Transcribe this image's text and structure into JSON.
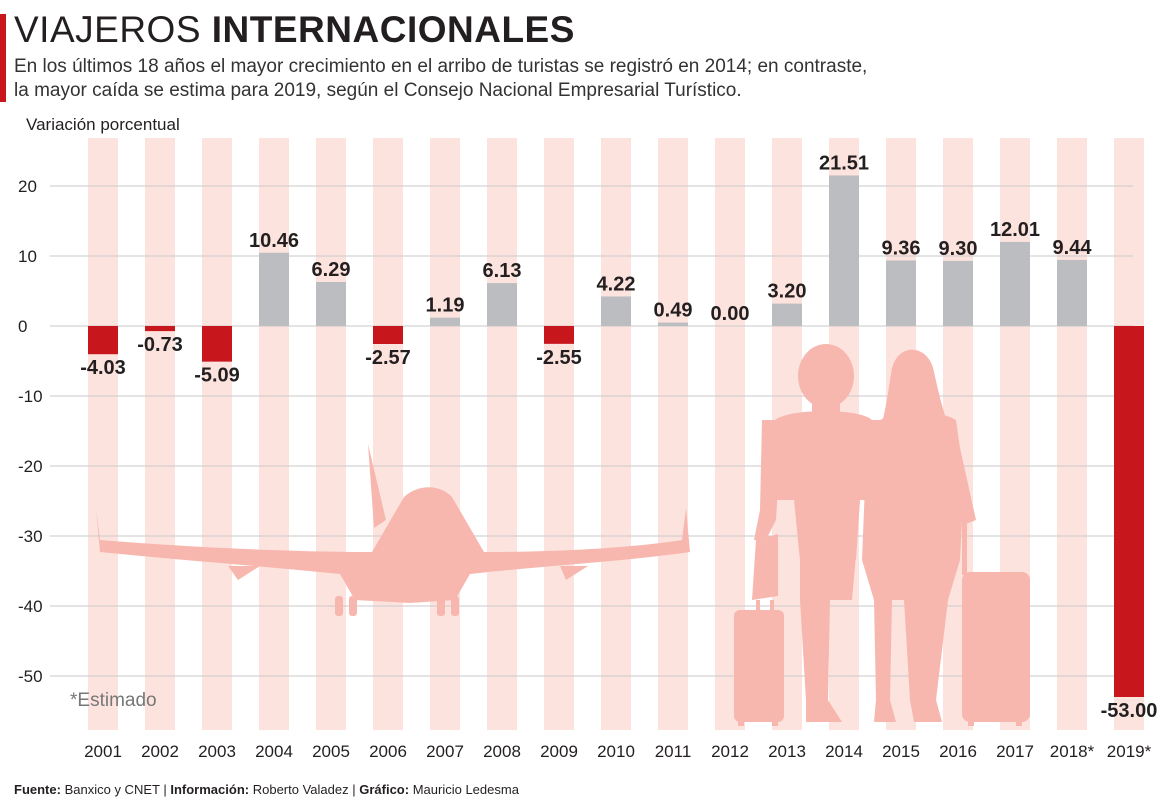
{
  "header": {
    "title_light": "VIAJEROS ",
    "title_bold": "INTERNACIONALES",
    "subtitle_line1": "En los últimos 18 años el mayor crecimiento en el arribo de turistas se registró en 2014; en contraste,",
    "subtitle_line2": "la mayor caída se estima para 2019, según el Consejo Nacional Empresarial Turístico."
  },
  "note": "*Estimado",
  "footer": {
    "fuente_label": "Fuente:",
    "fuente": "Banxico y CNET",
    "info_label": "Información:",
    "info": "Roberto Valadez",
    "grafico_label": "Gráfico:",
    "grafico": "Mauricio Ledesma",
    "sep": "|"
  },
  "colors": {
    "negative": "#c8161d",
    "positive": "#bcbdc0",
    "stripe": "#fde3de",
    "silhouette": "#f7b7ae",
    "grid": "#c9c9c9"
  },
  "chart_data": {
    "type": "bar",
    "ylabel": "Variación porcentual",
    "ylim": [
      -57,
      27
    ],
    "yticks": [
      20,
      10,
      0,
      -10,
      -20,
      -30,
      -40,
      -50
    ],
    "categories": [
      "2001",
      "2002",
      "2003",
      "2004",
      "2005",
      "2006",
      "2007",
      "2008",
      "2009",
      "2010",
      "2011",
      "2012",
      "2013",
      "2014",
      "2015",
      "2016",
      "2017",
      "2018*",
      "2019*"
    ],
    "values": [
      -4.03,
      -0.73,
      -5.09,
      10.46,
      6.29,
      -2.57,
      1.19,
      6.13,
      -2.55,
      4.22,
      0.49,
      0.0,
      3.2,
      21.51,
      9.36,
      9.3,
      12.01,
      9.44,
      -53.0
    ],
    "labels": [
      "-4.03",
      "-0.73",
      "-5.09",
      "10.46",
      "6.29",
      "-2.57",
      "1.19",
      "6.13",
      "-2.55",
      "4.22",
      "0.49",
      "0.00",
      "3.20",
      "21.51",
      "9.36",
      "9.30",
      "12.01",
      "9.44",
      "-53.00"
    ],
    "grid": true,
    "legend": "none"
  }
}
